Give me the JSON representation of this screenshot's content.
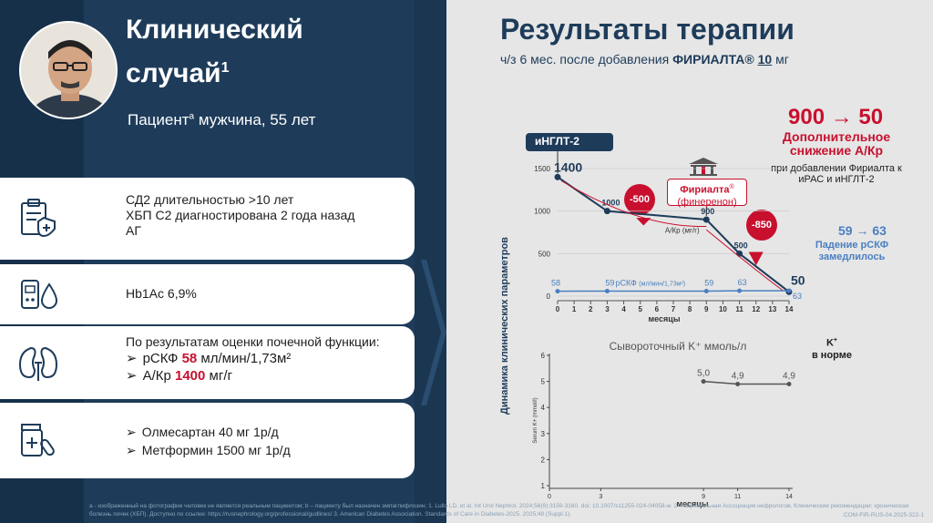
{
  "left": {
    "title_line1": "Клинический",
    "title_line2": "случай",
    "title_sup": "1",
    "patient_prefix": "Пациент",
    "patient_sup": "а",
    "patient_suffix": " мужчина, 55 лет",
    "cards": {
      "diagnosis": {
        "line1": "СД2 длительностью >10 лет",
        "line2": "ХБП С2 диагностирована 2 года назад",
        "line3": "АГ"
      },
      "hba1c": {
        "line1": "Hb1Ac 6,9%"
      },
      "kidney": {
        "heading": "По результатам оценки почечной функции:",
        "r1_prefix": "рСКФ ",
        "r1_value": "58",
        "r1_unit": " мл/мин/1,73м²",
        "r2_prefix": "А/Кр ",
        "r2_value": "1400",
        "r2_unit": " мг/г",
        "bullet": "➢"
      },
      "therapy": {
        "line1": "Олмесартан 40 мг 1р/д",
        "line2": "Метформин 1500 мг 1р/д",
        "bullet": "➢"
      }
    },
    "footnote": "a - изображенный на фотографии человек не является реальным пациентом; b – пациенту был назначен эмпаглифлозин; 1. Lullo LD, et al. Int Urol Nephrol. 2024;56(9):3159-3160. doi: 10.1007/s11255-024-04058-w. 2. Национальная Ассоциация нефрологов. Клинические рекомендации: хроническая болезнь почек (ХБП). Доступно по ссылке: https://rusnephrology.org/professional/gudlines/ 3. American Diabetes Association. Standards of Care in Diabetes-2025. 2025;48 (Suppl.1).",
    "code": "COM-FIR-RUS-04.2025-322-1"
  },
  "right": {
    "title": "Результаты терапии",
    "subtitle_prefix": "ч/з 6 мес. после добавления ",
    "subtitle_drug": "ФИРИАЛТА®",
    "subtitle_dose": "10",
    "subtitle_unit": " мг",
    "kpi": "900 → 50",
    "red_note": "Дополнительное снижение А/Кр",
    "red_note2": "при добавлении Фириалта к иРАС и иНГЛТ-2",
    "blue_kpi": "59 → 63",
    "blue_note": "Падение рСКФ замедлилось",
    "tag_ingl": "иНГЛТ-2",
    "tag_fir_line1": "Фириалта",
    "tag_fir_sup": "®",
    "tag_fir_line2": "(финеренон)",
    "bubble1": "-500",
    "bubble2": "-850",
    "y_axis_title": "Динамика клинических параметров",
    "k_note_line1": "K",
    "k_note_sup": "+",
    "k_note_line2": "в норме"
  },
  "colors": {
    "navy": "#1e3c5a",
    "red": "#c8102e",
    "blue": "#4a7fc1",
    "gray_line": "#555555"
  },
  "chart_data": [
    {
      "type": "line",
      "xlabel": "месяцы",
      "x_ticks": [
        0,
        1,
        2,
        3,
        4,
        5,
        6,
        7,
        8,
        9,
        10,
        11,
        12,
        13,
        14
      ],
      "y_ticks": [
        0,
        500,
        1000,
        1500
      ],
      "ylim": [
        0,
        1500
      ],
      "xlim": [
        0,
        14
      ],
      "series": [
        {
          "name": "А/Кр (мг/г)",
          "label": "А/Кр",
          "unit_label": "(мг/г)",
          "x": [
            0,
            3,
            9,
            11,
            14
          ],
          "values": [
            1400,
            1000,
            900,
            500,
            50
          ],
          "point_labels": [
            "1400",
            "1000",
            "900",
            "500",
            "50"
          ]
        },
        {
          "name": "рСКФ (мл/мин/1,73м²)",
          "label": "рСКФ",
          "unit_label": "(мл/мин/1,73м²)",
          "x": [
            0,
            3,
            9,
            11,
            14
          ],
          "values": [
            58,
            59,
            59,
            63,
            63
          ],
          "point_labels": [
            "58",
            "59",
            "59",
            "63",
            "63"
          ]
        }
      ]
    },
    {
      "type": "line",
      "title": "Сывороточный K⁺ ммоль/л",
      "xlabel": "месяцы",
      "ylabel": "Serum K+ (mmol/l)",
      "x_ticks": [
        0,
        3,
        9,
        11,
        14
      ],
      "y_ticks": [
        1,
        2,
        3,
        4,
        5,
        6
      ],
      "ylim": [
        1,
        6
      ],
      "xlim": [
        0,
        14
      ],
      "series": [
        {
          "name": "K+",
          "x": [
            9,
            11,
            14
          ],
          "values": [
            5.0,
            4.9,
            4.9
          ],
          "point_labels": [
            "5,0",
            "4,9",
            "4,9"
          ]
        }
      ]
    }
  ]
}
